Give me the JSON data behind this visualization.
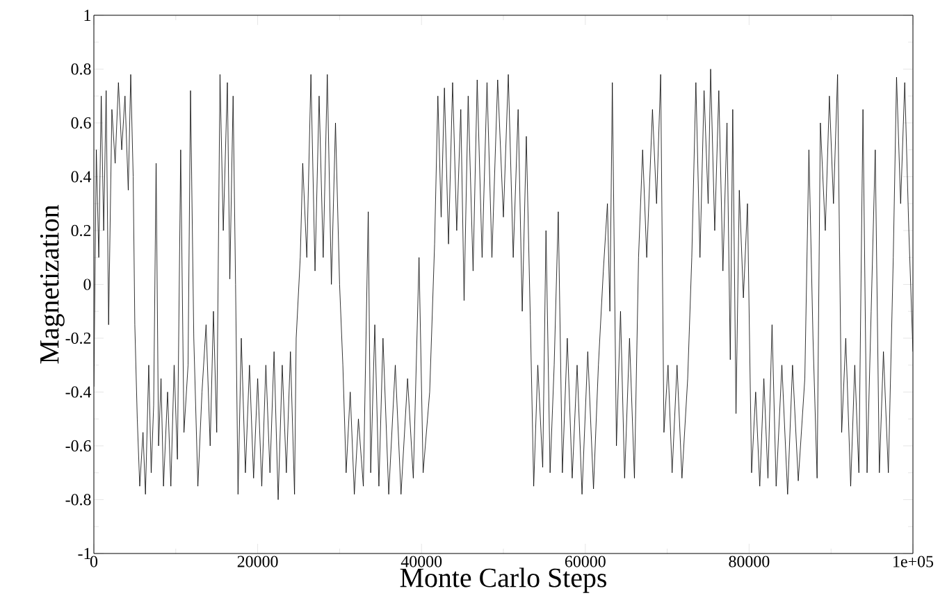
{
  "chart_data": {
    "type": "line",
    "xlabel": "Monte Carlo Steps",
    "ylabel": "Magnetization",
    "color": "#000000",
    "marker": "none",
    "line_style": "solid",
    "xlim": [
      0,
      100000
    ],
    "ylim": [
      -1,
      1
    ],
    "xticks": [
      0,
      20000,
      40000,
      60000,
      80000,
      {
        "value": 100000,
        "label": "1e+05"
      }
    ],
    "yticks": [
      -1,
      -0.8,
      -0.6,
      -0.4,
      -0.2,
      0,
      0.2,
      0.4,
      0.6,
      0.8,
      1
    ],
    "x": [
      0,
      300,
      600,
      900,
      1200,
      1500,
      1800,
      2200,
      2600,
      3000,
      3400,
      3800,
      4200,
      4500,
      4800,
      5000,
      5300,
      5600,
      6000,
      6300,
      6700,
      7000,
      7300,
      7600,
      7900,
      8200,
      8500,
      9000,
      9400,
      9800,
      10200,
      10600,
      11000,
      11500,
      11800,
      12200,
      12700,
      13200,
      13700,
      14200,
      14600,
      15000,
      15400,
      15800,
      16300,
      16600,
      17000,
      17300,
      17600,
      18000,
      18500,
      19000,
      19500,
      20000,
      20500,
      21000,
      21500,
      22000,
      22500,
      23000,
      23500,
      24000,
      24500,
      24700,
      25200,
      25500,
      26000,
      26500,
      27000,
      27500,
      28000,
      28500,
      29000,
      29500,
      30000,
      30400,
      30800,
      31300,
      31800,
      32300,
      32900,
      33500,
      33800,
      34300,
      34800,
      35300,
      36000,
      36800,
      37500,
      38300,
      39000,
      39700,
      40200,
      41000,
      41600,
      42000,
      42400,
      42800,
      43300,
      43800,
      44300,
      44800,
      45200,
      45700,
      46300,
      46800,
      47400,
      48000,
      48600,
      49300,
      50000,
      50600,
      51200,
      51800,
      52300,
      52800,
      53300,
      53700,
      54200,
      54800,
      55200,
      55700,
      56200,
      56700,
      57200,
      57800,
      58400,
      59000,
      59600,
      60300,
      61000,
      61600,
      62200,
      62700,
      63000,
      63300,
      63800,
      64300,
      64800,
      65400,
      66000,
      66500,
      67000,
      67500,
      68200,
      68700,
      69200,
      69600,
      70100,
      70600,
      71200,
      71800,
      72500,
      73000,
      73500,
      74000,
      74500,
      75000,
      75300,
      75800,
      76300,
      76800,
      77300,
      77700,
      78000,
      78400,
      78800,
      79300,
      79800,
      80300,
      80800,
      81300,
      81800,
      82300,
      82800,
      83300,
      84000,
      84700,
      85300,
      86000,
      86800,
      87300,
      87800,
      88300,
      88700,
      89300,
      89800,
      90300,
      90800,
      91300,
      91800,
      92400,
      92900,
      93400,
      93900,
      94400,
      94900,
      95400,
      95900,
      96400,
      97000,
      97600,
      98000,
      98500,
      99000,
      99500,
      100000
    ],
    "values": [
      -0.38,
      0.5,
      0.1,
      0.7,
      0.2,
      0.72,
      -0.15,
      0.65,
      0.45,
      0.75,
      0.5,
      0.7,
      0.35,
      0.78,
      0.4,
      -0.15,
      -0.5,
      -0.75,
      -0.55,
      -0.78,
      -0.3,
      -0.7,
      -0.45,
      0.45,
      -0.6,
      -0.35,
      -0.75,
      -0.4,
      -0.75,
      -0.3,
      -0.65,
      0.5,
      -0.55,
      -0.3,
      0.72,
      -0.2,
      -0.75,
      -0.4,
      -0.15,
      -0.6,
      -0.1,
      -0.55,
      0.78,
      0.2,
      0.75,
      0.02,
      0.7,
      0.0,
      -0.78,
      -0.2,
      -0.7,
      -0.3,
      -0.72,
      -0.35,
      -0.75,
      -0.3,
      -0.7,
      -0.25,
      -0.8,
      -0.3,
      -0.7,
      -0.25,
      -0.78,
      -0.2,
      0.1,
      0.45,
      0.1,
      0.78,
      0.05,
      0.7,
      0.1,
      0.78,
      0.0,
      0.6,
      0.0,
      -0.3,
      -0.7,
      -0.4,
      -0.78,
      -0.5,
      -0.75,
      0.27,
      -0.7,
      -0.15,
      -0.75,
      -0.2,
      -0.78,
      -0.3,
      -0.78,
      -0.35,
      -0.72,
      0.1,
      -0.7,
      -0.4,
      0.15,
      0.7,
      0.25,
      0.73,
      0.15,
      0.75,
      0.2,
      0.65,
      -0.06,
      0.7,
      0.05,
      0.76,
      0.1,
      0.75,
      0.1,
      0.76,
      0.25,
      0.78,
      0.1,
      0.65,
      -0.1,
      0.55,
      -0.15,
      -0.75,
      -0.3,
      -0.68,
      0.2,
      -0.7,
      -0.3,
      0.27,
      -0.7,
      -0.2,
      -0.72,
      -0.3,
      -0.78,
      -0.25,
      -0.76,
      -0.3,
      0.05,
      0.3,
      -0.1,
      0.75,
      -0.6,
      -0.1,
      -0.72,
      -0.2,
      -0.72,
      0.1,
      0.5,
      0.1,
      0.65,
      0.3,
      0.78,
      -0.55,
      -0.3,
      -0.7,
      -0.3,
      -0.72,
      -0.35,
      0.1,
      0.75,
      0.1,
      0.72,
      0.3,
      0.8,
      0.2,
      0.72,
      0.05,
      0.6,
      -0.28,
      0.65,
      -0.48,
      0.35,
      -0.05,
      0.3,
      -0.7,
      -0.4,
      -0.75,
      -0.35,
      -0.72,
      -0.15,
      -0.75,
      -0.3,
      -0.78,
      -0.3,
      -0.73,
      -0.35,
      0.5,
      -0.2,
      -0.72,
      0.6,
      0.2,
      0.7,
      0.3,
      0.78,
      -0.55,
      -0.2,
      -0.75,
      -0.3,
      -0.7,
      0.65,
      -0.7,
      -0.1,
      0.5,
      -0.7,
      -0.25,
      -0.7,
      0.1,
      0.77,
      0.3,
      0.75,
      0.2,
      -0.25
    ]
  }
}
